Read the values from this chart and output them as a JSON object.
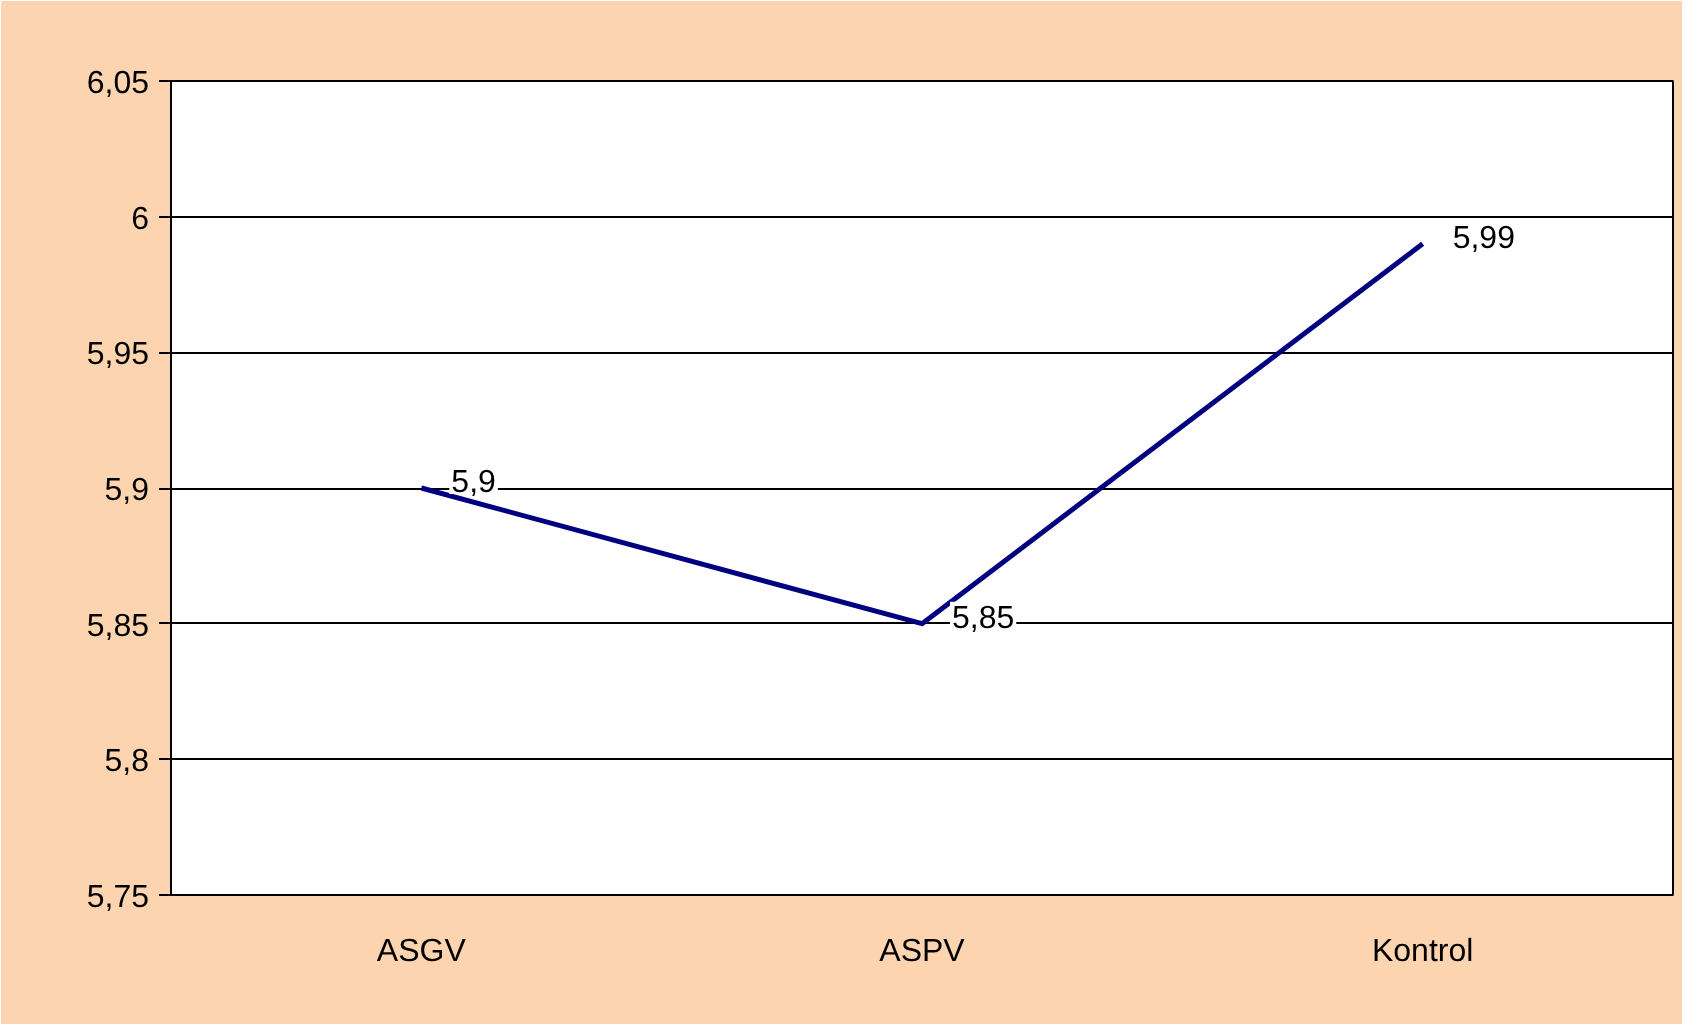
{
  "chart_data": {
    "type": "line",
    "categories": [
      "ASGV",
      "ASPV",
      "Kontrol"
    ],
    "series": [
      {
        "color": "#000080",
        "values": [
          5.9,
          5.85,
          5.99
        ],
        "value_labels": [
          "5,9",
          "5,85",
          "5,99"
        ]
      }
    ],
    "ylim": [
      5.75,
      6.05
    ],
    "yticks": [
      {
        "value": 5.75,
        "label": "5,75"
      },
      {
        "value": 5.8,
        "label": "5,8"
      },
      {
        "value": 5.85,
        "label": "5,85"
      },
      {
        "value": 5.9,
        "label": "5,9"
      },
      {
        "value": 5.95,
        "label": "5,95"
      },
      {
        "value": 6,
        "label": "6"
      },
      {
        "value": 6.05,
        "label": "6,05"
      }
    ],
    "grid": "y",
    "marker": "none",
    "line_style": "solid"
  }
}
